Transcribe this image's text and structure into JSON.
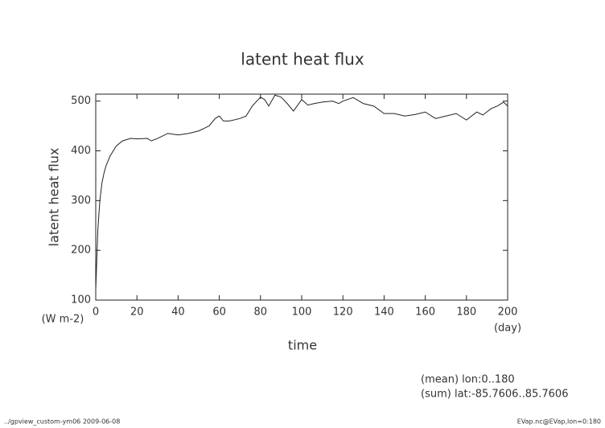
{
  "chart_data": {
    "type": "line",
    "title": "latent heat flux",
    "y_label": "latent heat flux",
    "y_units": "(W m-2)",
    "x_label": "time",
    "x_units": "(day)",
    "annotations": [
      "(mean) lon:0..180",
      "(sum) lat:-85.7606..85.7606"
    ],
    "footer_left": "../gpview_custom-ym06  2009-06-08",
    "footer_right": "EVap.nc@EVap,lon=0:180",
    "x": [
      0,
      1,
      2,
      3,
      4,
      5,
      7,
      10,
      13,
      17,
      20,
      25,
      27,
      30,
      35,
      40,
      45,
      50,
      55,
      58,
      60,
      62,
      65,
      70,
      73,
      76,
      80,
      82,
      84,
      87,
      90,
      93,
      96,
      100,
      103,
      106,
      110,
      115,
      118,
      120,
      125,
      130,
      135,
      140,
      145,
      150,
      155,
      160,
      165,
      170,
      175,
      180,
      185,
      188,
      192,
      195,
      198,
      200
    ],
    "series": [
      {
        "name": "latent heat flux",
        "color": "#222222",
        "values": [
          120,
          240,
          300,
          335,
          355,
          370,
          390,
          410,
          420,
          425,
          424,
          425,
          420,
          425,
          435,
          432,
          435,
          440,
          450,
          465,
          470,
          460,
          460,
          465,
          470,
          490,
          508,
          503,
          490,
          512,
          508,
          495,
          480,
          503,
          492,
          495,
          498,
          500,
          495,
          500,
          507,
          495,
          490,
          475,
          475,
          470,
          473,
          478,
          465,
          470,
          475,
          462,
          478,
          472,
          485,
          490,
          498,
          490
        ]
      }
    ],
    "xlim": [
      0,
      200
    ],
    "ylim": [
      100,
      514
    ],
    "xticks": [
      0,
      20,
      40,
      60,
      80,
      100,
      120,
      140,
      160,
      180,
      200
    ],
    "yticks": [
      100,
      200,
      300,
      400,
      500
    ]
  }
}
